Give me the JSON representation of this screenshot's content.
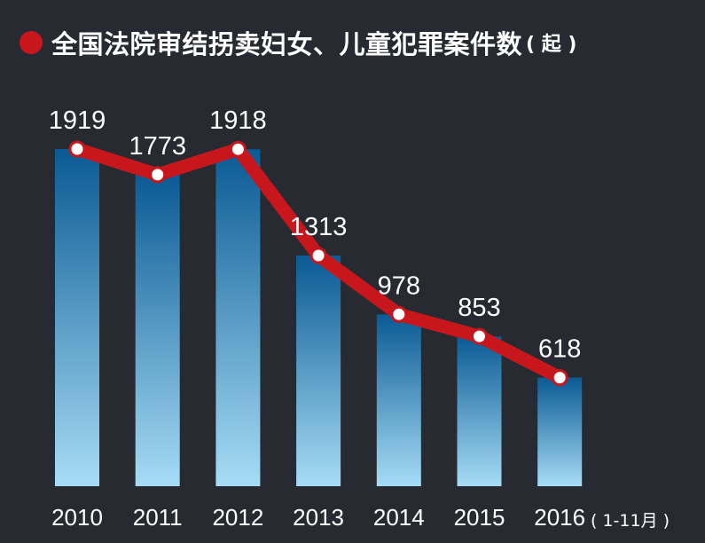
{
  "title": {
    "text": "全国法院审结拐卖妇女、儿童犯罪案件数",
    "unit": "( 起 )"
  },
  "colors": {
    "background": "#272a31",
    "line": "#c8161d",
    "bar_top": "#0a5a94",
    "bar_bottom": "#a6dcf5"
  },
  "chart_data": {
    "type": "bar",
    "title": "全国法院审结拐卖妇女、儿童犯罪案件数",
    "unit": "起",
    "categories": [
      "2010",
      "2011",
      "2012",
      "2013",
      "2014",
      "2015",
      "2016"
    ],
    "values": [
      1919,
      1773,
      1918,
      1313,
      978,
      853,
      618
    ],
    "overlay_line": true,
    "data_labels": [
      "1919",
      "1773",
      "1918",
      "1313",
      "978",
      "853",
      "618"
    ],
    "note": "( 1-11月 )",
    "grid": false,
    "legend": "none"
  }
}
